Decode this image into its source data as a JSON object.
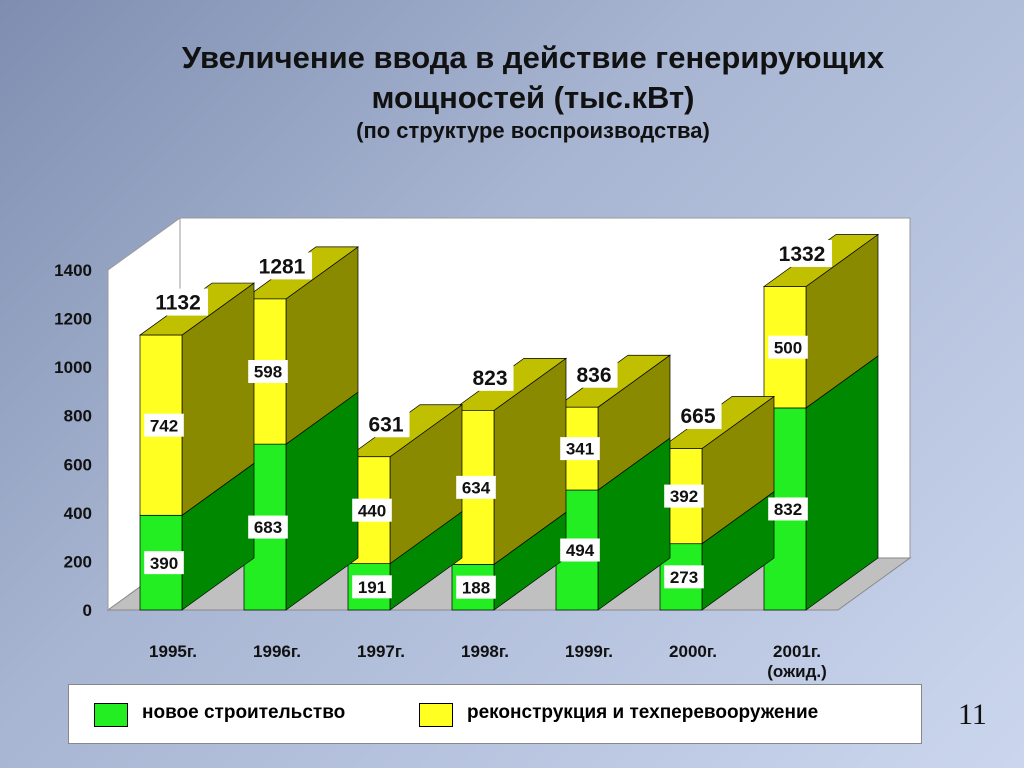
{
  "slide": {
    "title_line1": "Увеличение ввода в действие генерирующих",
    "title_line2": "мощностей (тыс.кВт)",
    "subtitle": "(по структуре воспроизводства)",
    "page_number": "11"
  },
  "legend": {
    "items": [
      {
        "label": "новое строительство",
        "color": "#22ee22"
      },
      {
        "label": "реконструкция и техперевооружение",
        "color": "#ffff22"
      }
    ]
  },
  "chart_data": {
    "type": "bar",
    "stacked": true,
    "three_d": true,
    "categories": [
      "1995г.",
      "1996г.",
      "1997г.",
      "1998г.",
      "1999г.",
      "2000г.",
      "2001г."
    ],
    "category_notes": [
      "",
      "",
      "",
      "",
      "",
      "",
      "(ожид.)"
    ],
    "series": [
      {
        "name": "новое строительство",
        "color": "#22ee22",
        "values": [
          390,
          683,
          191,
          188,
          494,
          273,
          832
        ]
      },
      {
        "name": "реконструкция и техперевооружение",
        "color": "#ffff22",
        "values": [
          742,
          598,
          440,
          634,
          341,
          392,
          500
        ]
      }
    ],
    "totals": [
      1132,
      1281,
      631,
      823,
      836,
      665,
      1332
    ],
    "ylim": [
      0,
      1400
    ],
    "yticks": [
      0,
      200,
      400,
      600,
      800,
      1000,
      1200,
      1400
    ],
    "grid": false,
    "legend_position": "bottom"
  }
}
